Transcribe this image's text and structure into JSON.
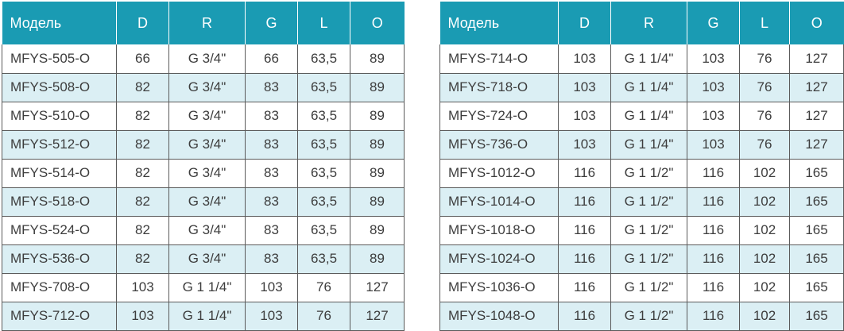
{
  "columns": [
    "Модель",
    "D",
    "R",
    "G",
    "L",
    "O"
  ],
  "left_table": {
    "rows": [
      [
        "MFYS-505-O",
        "66",
        "G 3/4\"",
        "66",
        "63,5",
        "89"
      ],
      [
        "MFYS-508-O",
        "82",
        "G 3/4\"",
        "83",
        "63,5",
        "89"
      ],
      [
        "MFYS-510-O",
        "82",
        "G 3/4\"",
        "83",
        "63,5",
        "89"
      ],
      [
        "MFYS-512-O",
        "82",
        "G 3/4\"",
        "83",
        "63,5",
        "89"
      ],
      [
        "MFYS-514-O",
        "82",
        "G 3/4\"",
        "83",
        "63,5",
        "89"
      ],
      [
        "MFYS-518-O",
        "82",
        "G 3/4\"",
        "83",
        "63,5",
        "89"
      ],
      [
        "MFYS-524-O",
        "82",
        "G 3/4\"",
        "83",
        "63,5",
        "89"
      ],
      [
        "MFYS-536-O",
        "82",
        "G 3/4\"",
        "83",
        "63,5",
        "89"
      ],
      [
        "MFYS-708-O",
        "103",
        "G 1 1/4\"",
        "103",
        "76",
        "127"
      ],
      [
        "MFYS-712-O",
        "103",
        "G 1 1/4\"",
        "103",
        "76",
        "127"
      ]
    ]
  },
  "right_table": {
    "rows": [
      [
        "MFYS-714-O",
        "103",
        "G 1 1/4\"",
        "103",
        "76",
        "127"
      ],
      [
        "MFYS-718-O",
        "103",
        "G 1 1/4\"",
        "103",
        "76",
        "127"
      ],
      [
        "MFYS-724-O",
        "103",
        "G 1 1/4\"",
        "103",
        "76",
        "127"
      ],
      [
        "MFYS-736-O",
        "103",
        "G 1 1/4\"",
        "103",
        "76",
        "127"
      ],
      [
        "MFYS-1012-O",
        "116",
        "G 1 1/2\"",
        "116",
        "102",
        "165"
      ],
      [
        "MFYS-1014-O",
        "116",
        "G 1 1/2\"",
        "116",
        "102",
        "165"
      ],
      [
        "MFYS-1018-O",
        "116",
        "G 1 1/2\"",
        "116",
        "102",
        "165"
      ],
      [
        "MFYS-1024-O",
        "116",
        "G 1 1/2\"",
        "116",
        "102",
        "165"
      ],
      [
        "MFYS-1036-O",
        "116",
        "G 1 1/2\"",
        "116",
        "102",
        "165"
      ],
      [
        "MFYS-1048-O",
        "116",
        "G 1 1/2\"",
        "116",
        "102",
        "165"
      ]
    ]
  },
  "colors": {
    "header_bg": "#1a9bb3",
    "header_text": "#ffffff",
    "stripe_bg": "#dbeff4",
    "border": "#5a5a5a",
    "cell_text": "#3d3d3d"
  }
}
